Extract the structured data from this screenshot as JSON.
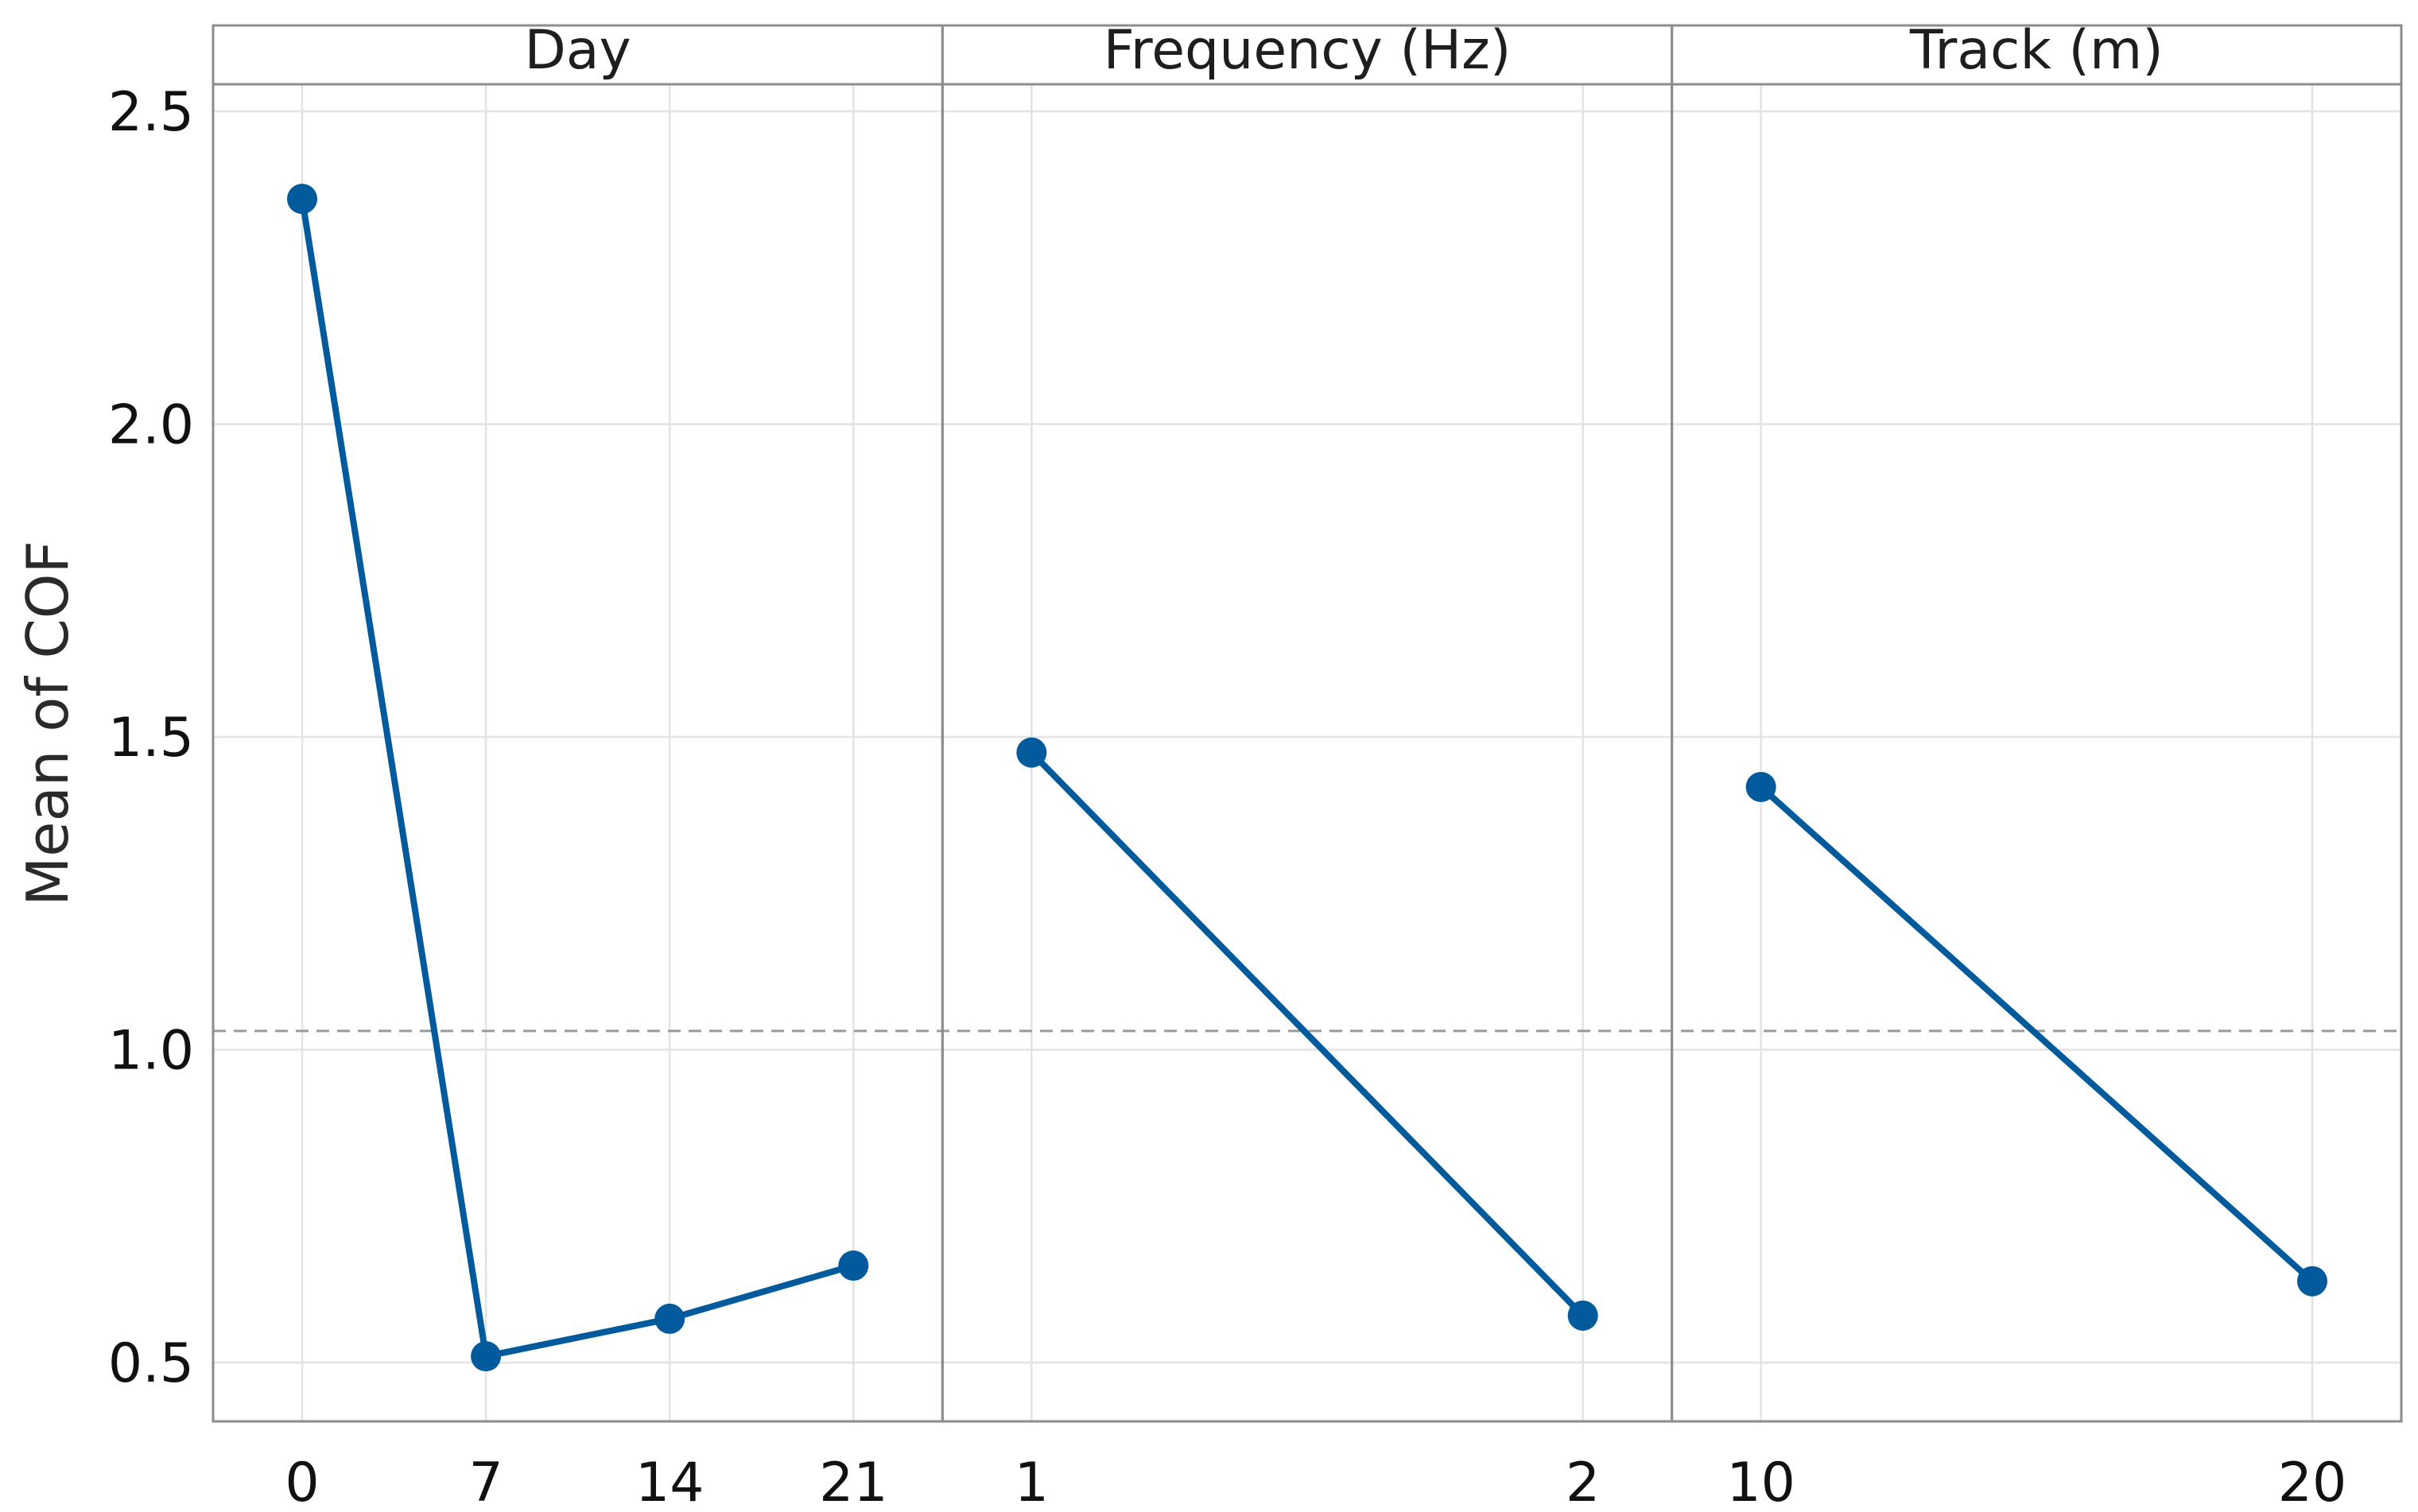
{
  "chart_data": {
    "type": "line",
    "ylabel": "Mean of COF",
    "y_ticks": [
      "0.5",
      "1.0",
      "1.5",
      "2.0",
      "2.5"
    ],
    "ylim": [
      0.4,
      2.55
    ],
    "reference_line": 1.03,
    "grid": true,
    "colors": {
      "series": "#005a9c",
      "reference": "#9a9a9a",
      "grid": "#e3e3e3",
      "frame": "#8c8c8c"
    },
    "panels": [
      {
        "title": "Day",
        "x": [
          "0",
          "7",
          "14",
          "21"
        ],
        "values": [
          2.36,
          0.51,
          0.57,
          0.655
        ]
      },
      {
        "title": "Frequency (Hz)",
        "x": [
          "1",
          "2"
        ],
        "values": [
          1.475,
          0.575
        ]
      },
      {
        "title": "Track (m)",
        "x": [
          "10",
          "20"
        ],
        "values": [
          1.42,
          0.63
        ]
      }
    ]
  }
}
